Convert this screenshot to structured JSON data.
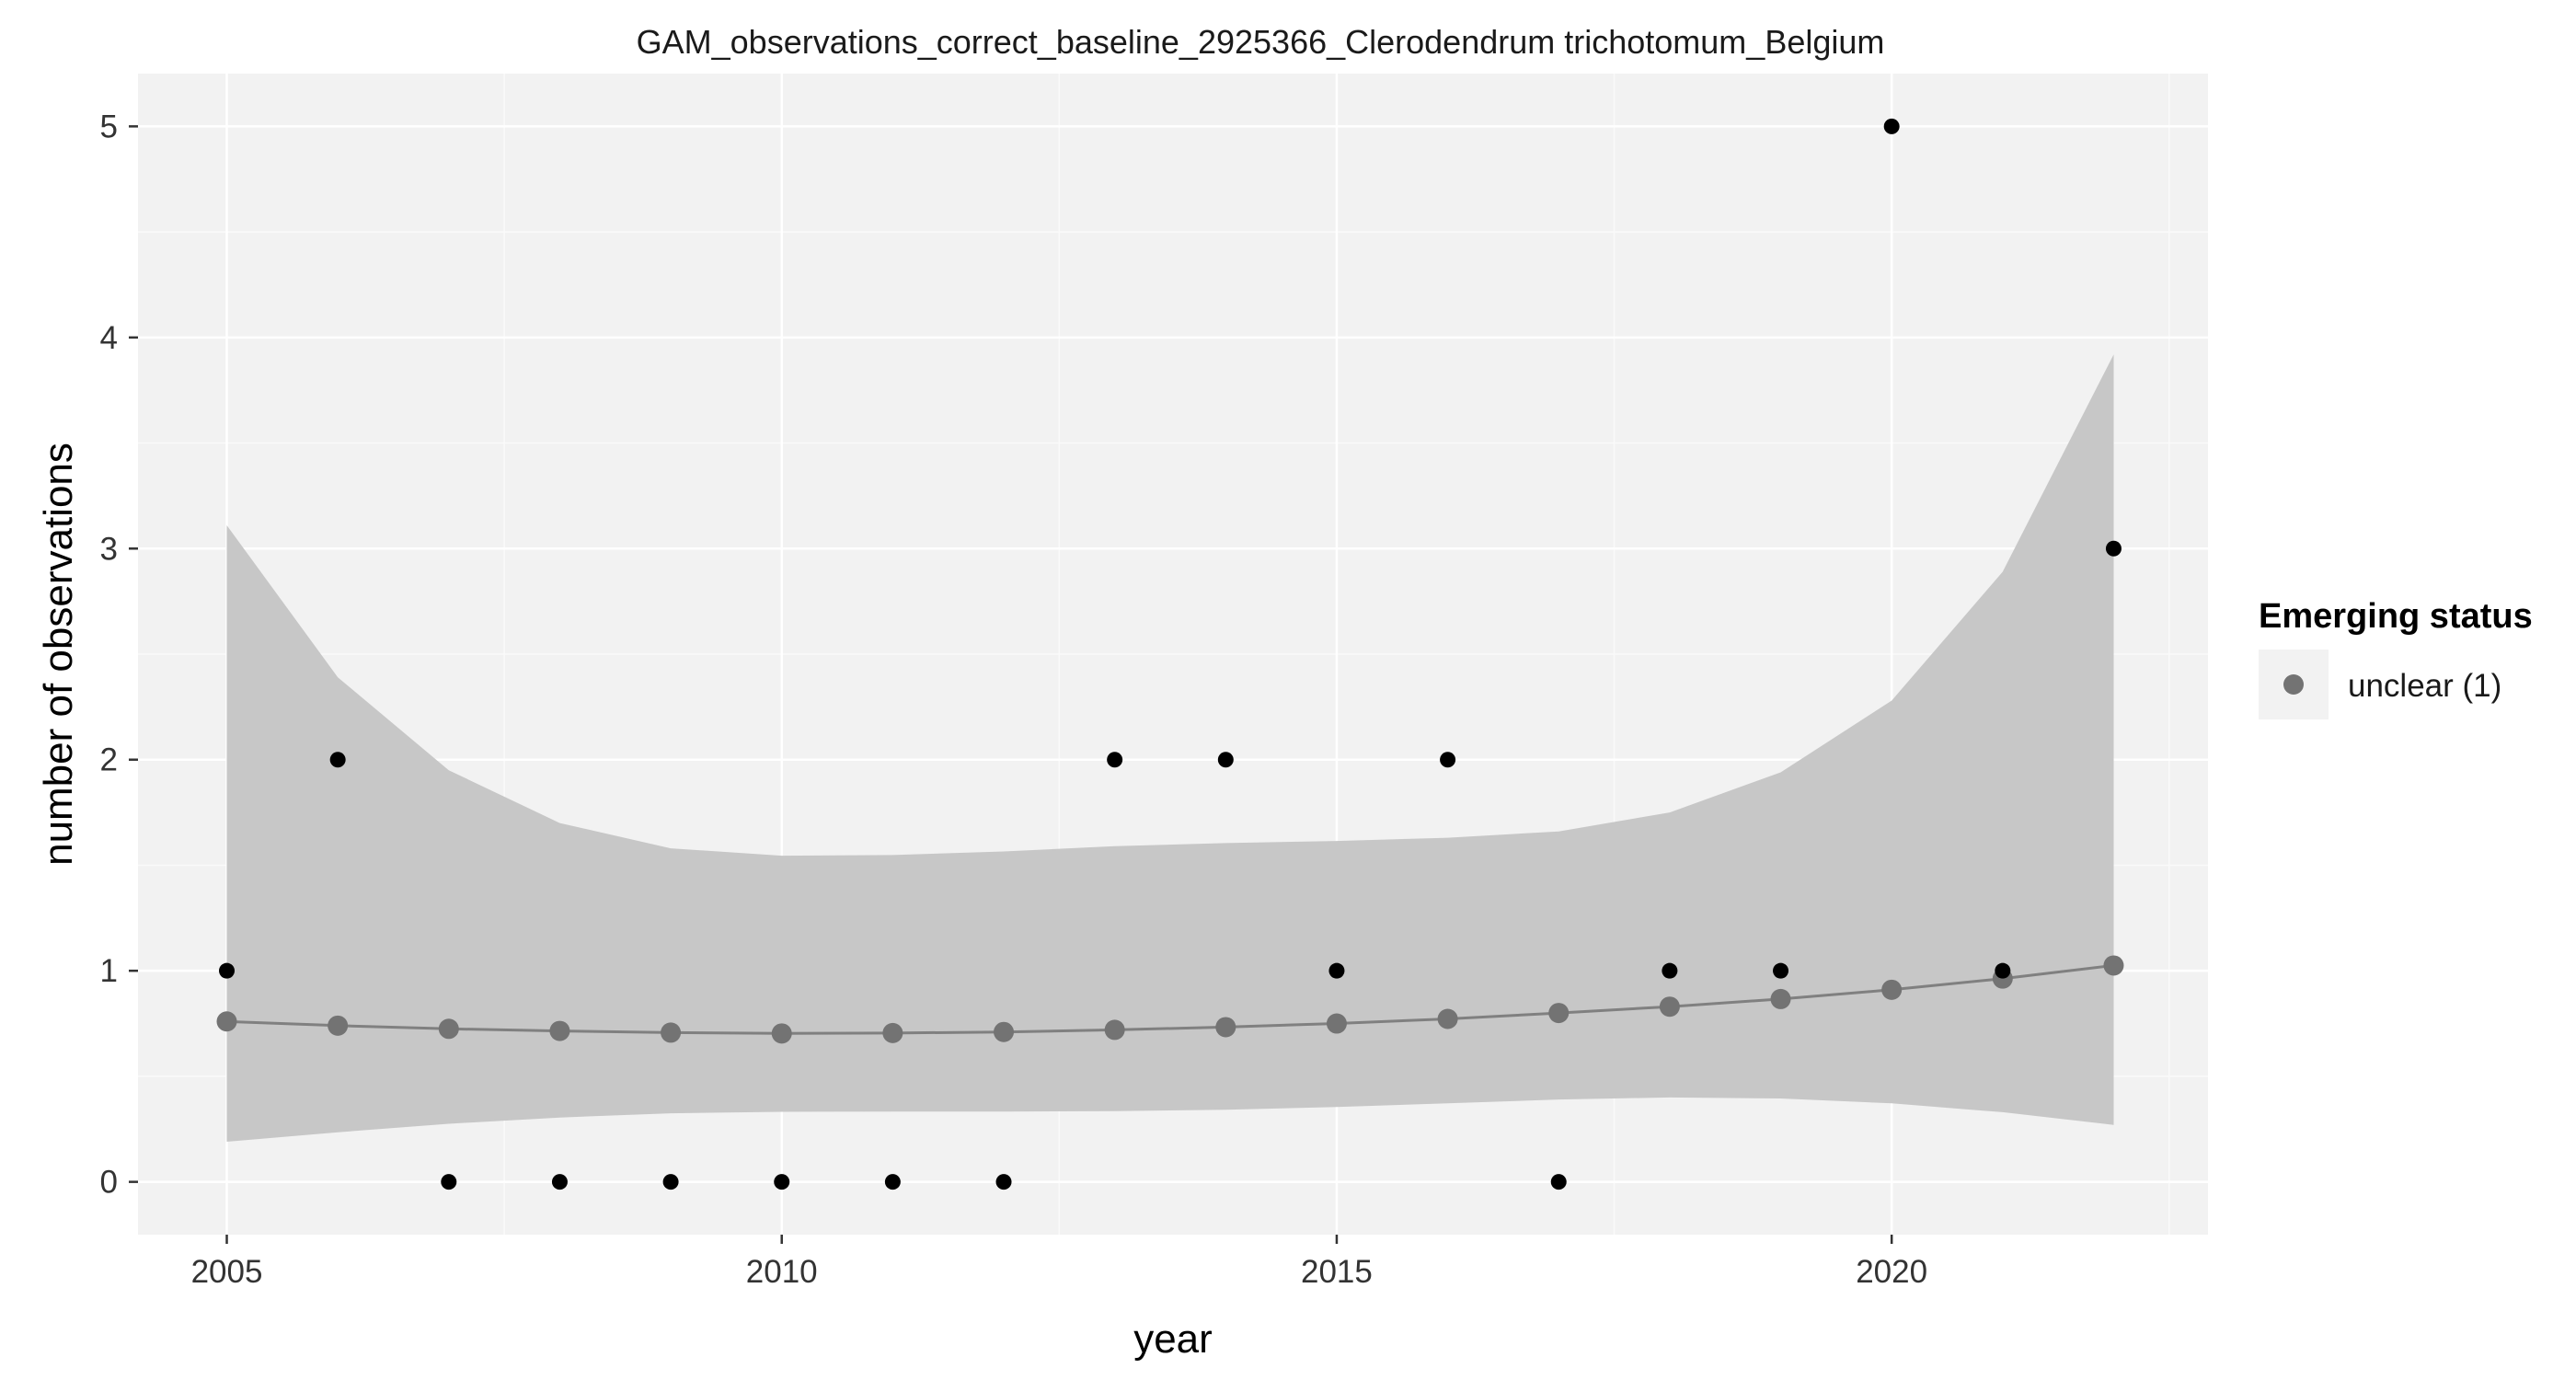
{
  "chart_data": {
    "type": "scatter",
    "title": "GAM_observations_correct_baseline_2925366_Clerodendrum trichotomum_Belgium",
    "xlabel": "year",
    "ylabel": "number of observations",
    "xlim": [
      2004.2,
      2022.85
    ],
    "ylim": [
      -0.25,
      5.25
    ],
    "x_ticks": [
      {
        "value": 2005,
        "label": "2005"
      },
      {
        "value": 2010,
        "label": "2010"
      },
      {
        "value": 2015,
        "label": "2015"
      },
      {
        "value": 2020,
        "label": "2020"
      }
    ],
    "y_ticks": [
      {
        "value": 0,
        "label": "0"
      },
      {
        "value": 1,
        "label": "1"
      },
      {
        "value": 2,
        "label": "2"
      },
      {
        "value": 3,
        "label": "3"
      },
      {
        "value": 4,
        "label": "4"
      },
      {
        "value": 5,
        "label": "5"
      }
    ],
    "grid": true,
    "observations": {
      "x": [
        2005,
        2006,
        2007,
        2008,
        2009,
        2010,
        2011,
        2012,
        2013,
        2014,
        2015,
        2016,
        2017,
        2018,
        2019,
        2020,
        2021,
        2022
      ],
      "y": [
        1,
        2,
        0,
        0,
        0,
        0,
        0,
        0,
        2,
        2,
        1,
        2,
        0,
        1,
        1,
        5,
        1,
        3
      ],
      "color": "#000000"
    },
    "fit": {
      "x": [
        2005,
        2006,
        2007,
        2008,
        2009,
        2010,
        2011,
        2012,
        2013,
        2014,
        2015,
        2016,
        2017,
        2018,
        2019,
        2020,
        2021,
        2022
      ],
      "y": [
        0.76,
        0.74,
        0.725,
        0.715,
        0.707,
        0.703,
        0.705,
        0.71,
        0.72,
        0.733,
        0.75,
        0.772,
        0.8,
        0.83,
        0.866,
        0.91,
        0.963,
        1.025
      ],
      "lower": [
        0.19,
        0.235,
        0.275,
        0.305,
        0.325,
        0.332,
        0.333,
        0.333,
        0.335,
        0.342,
        0.355,
        0.372,
        0.39,
        0.4,
        0.395,
        0.372,
        0.33,
        0.27
      ],
      "upper": [
        3.11,
        2.39,
        1.95,
        1.7,
        1.58,
        1.545,
        1.548,
        1.565,
        1.59,
        1.605,
        1.615,
        1.63,
        1.66,
        1.75,
        1.94,
        2.28,
        2.89,
        3.92
      ],
      "series_name": "unclear (1)",
      "point_color": "#737373",
      "line_color": "#808080",
      "ribbon_color": "#c4c4c4"
    },
    "legend": {
      "title": "Emerging status",
      "placement": "right",
      "entries": [
        {
          "label": "unclear (1)",
          "color": "#737373"
        }
      ]
    },
    "colors": {
      "panel_background": "#f2f2f2",
      "grid_major": "#ffffff",
      "grid_minor": "#fafafa"
    }
  }
}
